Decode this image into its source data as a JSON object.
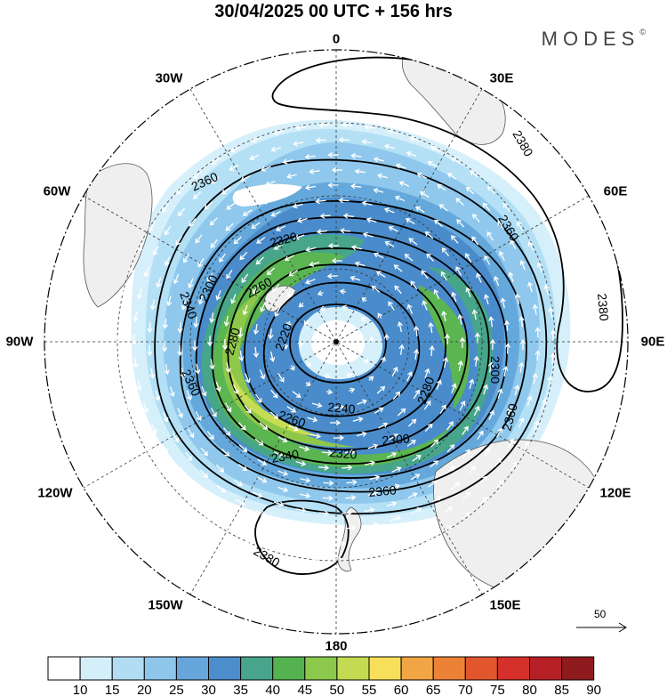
{
  "title": "30/04/2025  00 UTC  + 156 hrs",
  "brand": "MODES",
  "brand_mark": "©",
  "map": {
    "projection": "polar-stereographic",
    "pole": "south",
    "longitude_labels": [
      {
        "text": "0",
        "lon": 0
      },
      {
        "text": "30E",
        "lon": 30
      },
      {
        "text": "60E",
        "lon": 60
      },
      {
        "text": "90E",
        "lon": 90
      },
      {
        "text": "120E",
        "lon": 120
      },
      {
        "text": "150E",
        "lon": 150
      },
      {
        "text": "180",
        "lon": 180
      },
      {
        "text": "150W",
        "lon": -150
      },
      {
        "text": "120W",
        "lon": -120
      },
      {
        "text": "90W",
        "lon": -90
      },
      {
        "text": "60W",
        "lon": -60
      },
      {
        "text": "30W",
        "lon": -30
      }
    ],
    "contour_labels": [
      "2220",
      "2240",
      "2260",
      "2280",
      "2300",
      "2320",
      "2340",
      "2360",
      "2380"
    ],
    "reference_vector": "50",
    "colors": {
      "c10": "#ffffff",
      "c15": "#d6f0fb",
      "c20": "#b4e0f6",
      "c25": "#8fc8ec",
      "c30": "#64a8dc",
      "c35": "#4a8ccb",
      "c40": "#47a58a",
      "c45": "#5bb551",
      "c50": "#8ec84a",
      "c55": "#c6dc52",
      "land": "#efefef"
    }
  },
  "colorbar": {
    "ticks": [
      "10",
      "15",
      "20",
      "25",
      "30",
      "35",
      "40",
      "45",
      "50",
      "55",
      "60",
      "65",
      "70",
      "75",
      "80",
      "85",
      "90"
    ],
    "colors": [
      "#ffffff",
      "#d4eefa",
      "#b1dcf4",
      "#8ec6eb",
      "#66a6da",
      "#4d8dcc",
      "#48a58b",
      "#54b24f",
      "#8cc84b",
      "#c3da52",
      "#f7df5b",
      "#f2a544",
      "#ec8236",
      "#e2562e",
      "#d53029",
      "#b71f27",
      "#8f1b1f"
    ]
  }
}
